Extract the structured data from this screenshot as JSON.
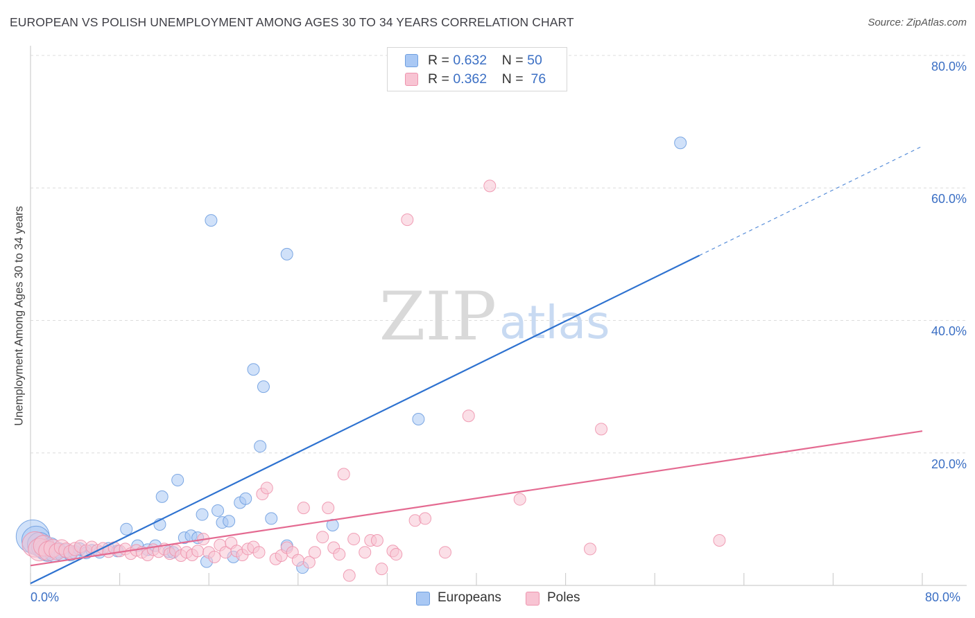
{
  "title": "EUROPEAN VS POLISH UNEMPLOYMENT AMONG AGES 30 TO 34 YEARS CORRELATION CHART",
  "source": "Source: ZipAtlas.com",
  "watermark": {
    "zip": "ZIP",
    "atlas": "atlas"
  },
  "legend": {
    "rows": [
      {
        "r_label": "R =",
        "r_value": "0.632",
        "n_label": "N =",
        "n_value": "50",
        "color": "#a9c8f4",
        "border": "#6f9fe0"
      },
      {
        "r_label": "R =",
        "r_value": "0.362",
        "n_label": "N =",
        "n_value": "76",
        "color": "#f8c4d3",
        "border": "#ee93ad"
      }
    ]
  },
  "bottom_legend": [
    {
      "label": "Europeans",
      "color": "#a9c8f4",
      "border": "#6f9fe0"
    },
    {
      "label": "Poles",
      "color": "#f8c4d3",
      "border": "#ee93ad"
    }
  ],
  "chart_data": {
    "type": "scatter",
    "title": "EUROPEAN VS POLISH UNEMPLOYMENT AMONG AGES 30 TO 34 YEARS CORRELATION CHART",
    "xlabel": "",
    "ylabel": "Unemployment Among Ages 30 to 34 years",
    "xlim": [
      0,
      80
    ],
    "ylim": [
      0,
      80
    ],
    "x_tick_labels": [
      "0.0%",
      "80.0%"
    ],
    "y_ticks": [
      20,
      40,
      60,
      80
    ],
    "y_tick_labels": [
      "20.0%",
      "40.0%",
      "60.0%",
      "80.0%"
    ],
    "grid": true,
    "series": [
      {
        "name": "Europeans",
        "color": "#6f9fe0",
        "fill": "#a9c8f4",
        "line_color": "#2e72d0",
        "r": 0.632,
        "n": 50,
        "trend": {
          "x0": 0,
          "y0": 0.3,
          "x1": 60,
          "y1": 49.8,
          "dash_to_x": 80,
          "dash_to_y": 66.3
        },
        "points": [
          [
            0.2,
            7.4,
            1.7
          ],
          [
            0.5,
            6.8,
            1.4
          ],
          [
            0.8,
            6.2,
            1.1
          ],
          [
            1.1,
            5.8,
            1.0
          ],
          [
            1.3,
            5.4,
            0.9
          ],
          [
            1.5,
            5.1,
            0.8
          ],
          [
            1.8,
            5.8,
            0.75
          ],
          [
            2.1,
            4.9,
            0.7
          ],
          [
            2.5,
            5.3,
            0.55
          ],
          [
            2.8,
            4.8,
            0.5
          ],
          [
            3.2,
            5.2,
            0.45
          ],
          [
            3.6,
            4.7,
            0.4
          ],
          [
            4.0,
            5.0,
            0.4
          ],
          [
            4.4,
            5.5,
            0.35
          ],
          [
            5.0,
            4.9,
            0.3
          ],
          [
            5.5,
            5.3,
            0.3
          ],
          [
            6.2,
            5.0,
            0.3
          ],
          [
            7.0,
            5.6,
            0.3
          ],
          [
            7.8,
            5.2,
            0.3
          ],
          [
            8.6,
            8.5,
            0.3
          ],
          [
            9.6,
            6.0,
            0.3
          ],
          [
            10.5,
            5.4,
            0.3
          ],
          [
            11.2,
            6.0,
            0.3
          ],
          [
            11.6,
            9.2,
            0.3
          ],
          [
            11.8,
            13.4,
            0.3
          ],
          [
            12.4,
            5.1,
            0.3
          ],
          [
            12.8,
            5.0,
            0.3
          ],
          [
            13.2,
            15.9,
            0.3
          ],
          [
            13.8,
            7.2,
            0.3
          ],
          [
            14.4,
            7.5,
            0.3
          ],
          [
            15.0,
            7.2,
            0.3
          ],
          [
            15.4,
            10.7,
            0.3
          ],
          [
            15.8,
            3.6,
            0.3
          ],
          [
            16.2,
            55.1,
            0.3
          ],
          [
            16.8,
            11.3,
            0.3
          ],
          [
            17.2,
            9.5,
            0.3
          ],
          [
            17.8,
            9.7,
            0.3
          ],
          [
            18.2,
            4.3,
            0.3
          ],
          [
            18.8,
            12.5,
            0.3
          ],
          [
            19.3,
            13.1,
            0.3
          ],
          [
            20.0,
            32.6,
            0.3
          ],
          [
            20.6,
            21.0,
            0.3
          ],
          [
            20.9,
            30.0,
            0.3
          ],
          [
            21.6,
            10.1,
            0.3
          ],
          [
            23.0,
            50.0,
            0.3
          ],
          [
            23.0,
            6.0,
            0.3
          ],
          [
            24.4,
            2.7,
            0.3
          ],
          [
            27.1,
            9.1,
            0.3
          ],
          [
            34.8,
            25.1,
            0.3
          ],
          [
            58.3,
            66.8,
            0.3
          ]
        ]
      },
      {
        "name": "Poles",
        "color": "#ee93ad",
        "fill": "#f8c4d3",
        "line_color": "#e46a91",
        "r": 0.362,
        "n": 76,
        "trend": {
          "x0": 0,
          "y0": 3.0,
          "x1": 80,
          "y1": 23.3
        },
        "points": [
          [
            0.4,
            6.2,
            1.2
          ],
          [
            0.8,
            5.4,
            1.0
          ],
          [
            1.2,
            6.0,
            0.9
          ],
          [
            1.6,
            5.2,
            0.8
          ],
          [
            2.0,
            5.6,
            0.7
          ],
          [
            2.4,
            5.1,
            0.6
          ],
          [
            2.8,
            5.8,
            0.5
          ],
          [
            3.2,
            5.3,
            0.5
          ],
          [
            3.6,
            5.0,
            0.45
          ],
          [
            4.0,
            5.5,
            0.4
          ],
          [
            4.5,
            5.9,
            0.35
          ],
          [
            5.0,
            5.2,
            0.35
          ],
          [
            5.5,
            5.8,
            0.3
          ],
          [
            6.0,
            5.3,
            0.3
          ],
          [
            6.5,
            5.6,
            0.3
          ],
          [
            7.0,
            5.1,
            0.3
          ],
          [
            7.5,
            5.7,
            0.3
          ],
          [
            8.0,
            5.2,
            0.3
          ],
          [
            8.5,
            5.5,
            0.3
          ],
          [
            9.0,
            4.8,
            0.3
          ],
          [
            9.5,
            5.3,
            0.3
          ],
          [
            10.0,
            5.0,
            0.3
          ],
          [
            10.5,
            4.6,
            0.3
          ],
          [
            11.0,
            5.4,
            0.3
          ],
          [
            11.5,
            5.1,
            0.3
          ],
          [
            12.0,
            5.5,
            0.3
          ],
          [
            12.5,
            4.8,
            0.3
          ],
          [
            13.0,
            5.3,
            0.3
          ],
          [
            13.5,
            4.5,
            0.3
          ],
          [
            14.0,
            5.0,
            0.3
          ],
          [
            14.5,
            4.6,
            0.3
          ],
          [
            15.0,
            5.2,
            0.3
          ],
          [
            15.5,
            7.0,
            0.3
          ],
          [
            16.0,
            5.0,
            0.3
          ],
          [
            16.5,
            4.3,
            0.3
          ],
          [
            17.0,
            6.1,
            0.3
          ],
          [
            17.5,
            5.0,
            0.3
          ],
          [
            18.0,
            6.4,
            0.3
          ],
          [
            18.5,
            5.2,
            0.3
          ],
          [
            19.0,
            4.6,
            0.3
          ],
          [
            19.5,
            5.5,
            0.3
          ],
          [
            20.0,
            5.8,
            0.3
          ],
          [
            20.5,
            5.0,
            0.3
          ],
          [
            20.8,
            13.8,
            0.3
          ],
          [
            21.2,
            14.7,
            0.3
          ],
          [
            22.0,
            4.0,
            0.3
          ],
          [
            22.5,
            4.5,
            0.3
          ],
          [
            23.0,
            5.7,
            0.3
          ],
          [
            23.5,
            5.0,
            0.3
          ],
          [
            24.0,
            3.8,
            0.3
          ],
          [
            24.5,
            11.7,
            0.3
          ],
          [
            25.0,
            3.5,
            0.3
          ],
          [
            25.5,
            5.0,
            0.3
          ],
          [
            26.2,
            7.3,
            0.3
          ],
          [
            26.7,
            11.7,
            0.3
          ],
          [
            27.2,
            5.7,
            0.3
          ],
          [
            27.7,
            4.7,
            0.3
          ],
          [
            28.1,
            16.8,
            0.3
          ],
          [
            28.6,
            1.5,
            0.3
          ],
          [
            29.0,
            7.0,
            0.3
          ],
          [
            30.0,
            5.0,
            0.3
          ],
          [
            30.5,
            6.8,
            0.3
          ],
          [
            31.1,
            6.8,
            0.3
          ],
          [
            31.5,
            2.5,
            0.3
          ],
          [
            32.5,
            5.2,
            0.3
          ],
          [
            32.8,
            4.7,
            0.3
          ],
          [
            33.8,
            55.2,
            0.3
          ],
          [
            34.5,
            9.8,
            0.3
          ],
          [
            35.4,
            10.1,
            0.3
          ],
          [
            37.2,
            5.0,
            0.3
          ],
          [
            39.3,
            25.6,
            0.3
          ],
          [
            41.2,
            60.3,
            0.3
          ],
          [
            43.9,
            13.0,
            0.3
          ],
          [
            50.2,
            5.5,
            0.3
          ],
          [
            51.2,
            23.6,
            0.3
          ],
          [
            61.8,
            6.8,
            0.3
          ]
        ]
      }
    ]
  }
}
